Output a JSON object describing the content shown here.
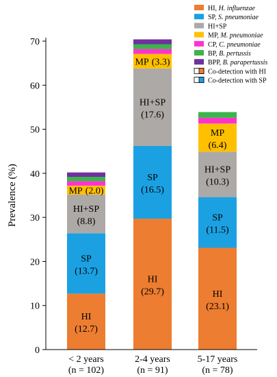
{
  "chart_data": {
    "type": "bar",
    "stacked": true,
    "ylabel": "Prevalence (%)",
    "ylim": [
      0,
      70
    ],
    "yticks": [
      0,
      10,
      20,
      30,
      40,
      50,
      60,
      70
    ],
    "categories": [
      {
        "line1": "< 2 years",
        "line2": "(n = 102)"
      },
      {
        "line1": "2-4 years",
        "line2": "(n = 91)"
      },
      {
        "line1": "5-17 years",
        "line2": "(n = 78)"
      }
    ],
    "legend": [
      {
        "abbr": "HI, ",
        "species": "H. influenzae",
        "color": "#ED7D31",
        "swatch": "solid"
      },
      {
        "abbr": "SP, ",
        "species": "S. pneumoniae",
        "color": "#1BA1E2",
        "swatch": "solid"
      },
      {
        "abbr": "HI+SP",
        "species": "",
        "color": "#ADA9A7",
        "swatch": "solid"
      },
      {
        "abbr": "MP, ",
        "species": "M. pneumoniae",
        "color": "#FFC000",
        "swatch": "solid"
      },
      {
        "abbr": "CP, ",
        "species": "C. pneumoniae",
        "color": "#FF33CC",
        "swatch": "solid"
      },
      {
        "abbr": "BP, ",
        "species": "B. pertussis",
        "color": "#3CB44B",
        "swatch": "solid"
      },
      {
        "abbr": "BPP, ",
        "species": "B. parapertussis",
        "color": "#7030A0",
        "swatch": "solid"
      },
      {
        "abbr": "Co-detection with HI",
        "species": "",
        "color": "#ED7D31",
        "swatch": "half"
      },
      {
        "abbr": "Co-detection with SP",
        "species": "",
        "color": "#1BA1E2",
        "swatch": "half"
      }
    ],
    "stacks": [
      [
        {
          "series": "HI",
          "value": 12.7,
          "color": "#ED7D31",
          "label": "HI",
          "value_label": "(12.7)"
        },
        {
          "series": "SP",
          "value": 13.7,
          "color": "#1BA1E2",
          "label": "SP",
          "value_label": "(13.7)"
        },
        {
          "series": "HI+SP",
          "value": 8.8,
          "color": "#ADA9A7",
          "label": "HI+SP",
          "value_label": "(8.8)"
        },
        {
          "series": "MP",
          "value": 2.0,
          "color": "#FFC000",
          "label": "MP",
          "value_label": "(2.0)",
          "inline": true
        },
        {
          "series": "CP",
          "value": 1.0,
          "color": "#FF33CC",
          "label": "",
          "value_label": ""
        },
        {
          "series": "BP",
          "value": 1.0,
          "color": "#3CB44B",
          "label": "",
          "value_label": ""
        },
        {
          "series": "BPP",
          "value": 1.0,
          "color": "#7030A0",
          "label": "",
          "value_label": ""
        }
      ],
      [
        {
          "series": "HI",
          "value": 29.7,
          "color": "#ED7D31",
          "label": "HI",
          "value_label": "(29.7)"
        },
        {
          "series": "SP",
          "value": 16.5,
          "color": "#1BA1E2",
          "label": "SP",
          "value_label": "(16.5)"
        },
        {
          "series": "HI+SP",
          "value": 17.6,
          "color": "#ADA9A7",
          "label": "HI+SP",
          "value_label": "(17.6)"
        },
        {
          "series": "MP",
          "value": 3.3,
          "color": "#FFC000",
          "label": "MP",
          "value_label": "(3.3)",
          "inline": true
        },
        {
          "series": "CP",
          "value": 1.1,
          "color": "#FF33CC",
          "label": "",
          "value_label": ""
        },
        {
          "series": "BP",
          "value": 1.1,
          "color": "#3CB44B",
          "label": "",
          "value_label": ""
        },
        {
          "series": "BPP",
          "value": 1.1,
          "color": "#7030A0",
          "label": "",
          "value_label": ""
        }
      ],
      [
        {
          "series": "HI",
          "value": 23.1,
          "color": "#ED7D31",
          "label": "HI",
          "value_label": "(23.1)"
        },
        {
          "series": "SP",
          "value": 11.5,
          "color": "#1BA1E2",
          "label": "SP",
          "value_label": "(11.5)"
        },
        {
          "series": "HI+SP",
          "value": 10.3,
          "color": "#ADA9A7",
          "label": "HI+SP",
          "value_label": "(10.3)"
        },
        {
          "series": "MP",
          "value": 6.4,
          "color": "#FFC000",
          "label": "MP",
          "value_label": "(6.4)"
        },
        {
          "series": "CP",
          "value": 1.3,
          "color": "#FF33CC",
          "label": "",
          "value_label": ""
        },
        {
          "series": "BP",
          "value": 1.3,
          "color": "#3CB44B",
          "label": "",
          "value_label": ""
        }
      ]
    ]
  }
}
